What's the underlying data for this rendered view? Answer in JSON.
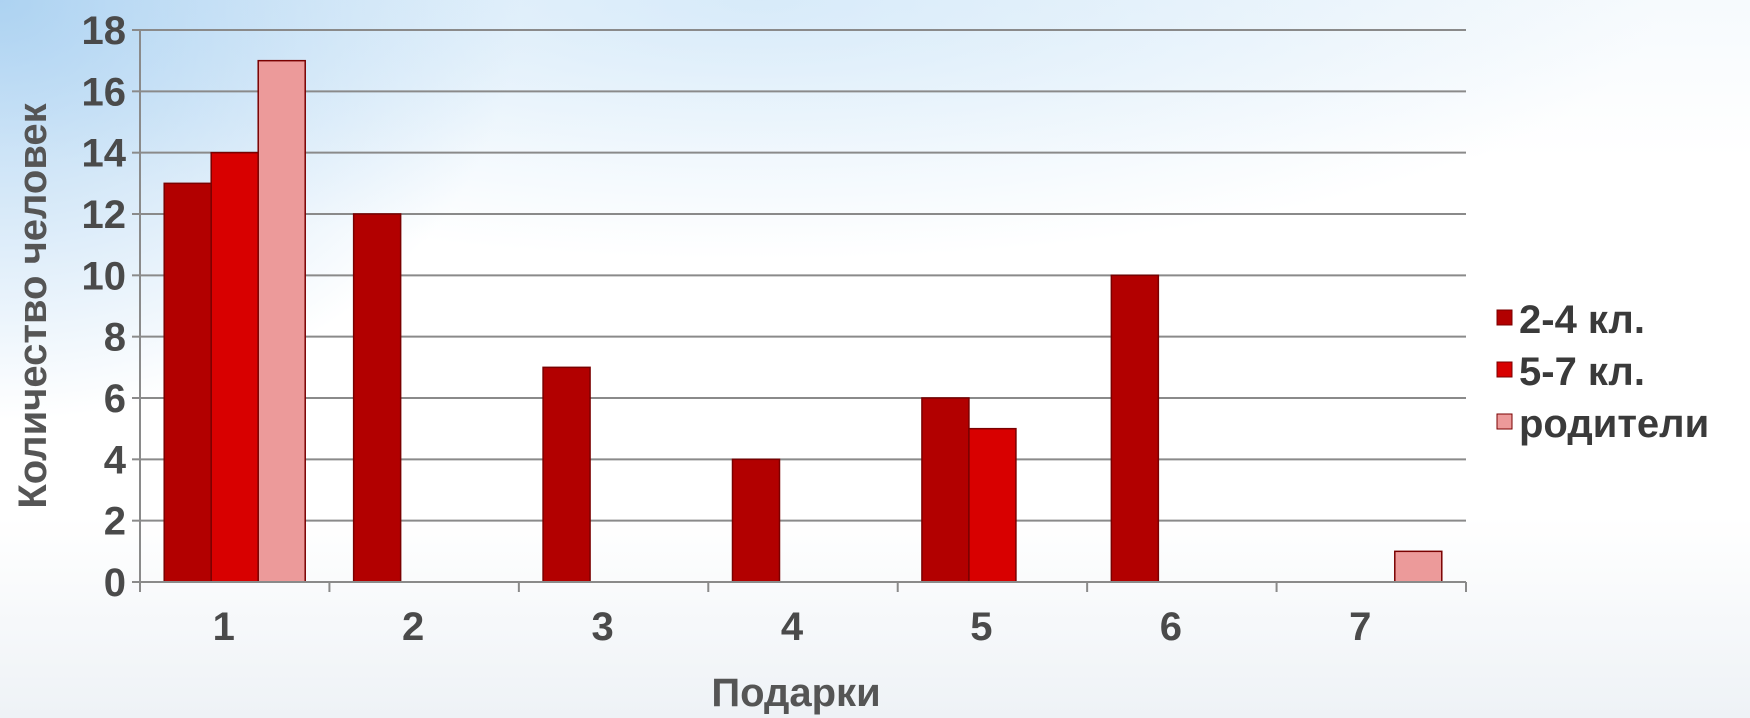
{
  "chart_data": {
    "type": "bar",
    "title": "",
    "xlabel": "Подарки",
    "ylabel": "Количество человек",
    "categories": [
      "1",
      "2",
      "3",
      "4",
      "5",
      "6",
      "7"
    ],
    "series": [
      {
        "name": "2-4 кл.",
        "color": "#b20000",
        "values": [
          13,
          12,
          7,
          4,
          6,
          10,
          0
        ]
      },
      {
        "name": "5-7 кл.",
        "color": "#d80000",
        "values": [
          14,
          0,
          0,
          0,
          5,
          0,
          0
        ]
      },
      {
        "name": "родители",
        "color": "#ec9a9a",
        "values": [
          17,
          0,
          0,
          0,
          0,
          0,
          1
        ]
      }
    ],
    "ylim": [
      0,
      18
    ],
    "yticks": [
      0,
      2,
      4,
      6,
      8,
      10,
      12,
      14,
      16,
      18
    ],
    "grid": true,
    "legend_position": "right"
  }
}
